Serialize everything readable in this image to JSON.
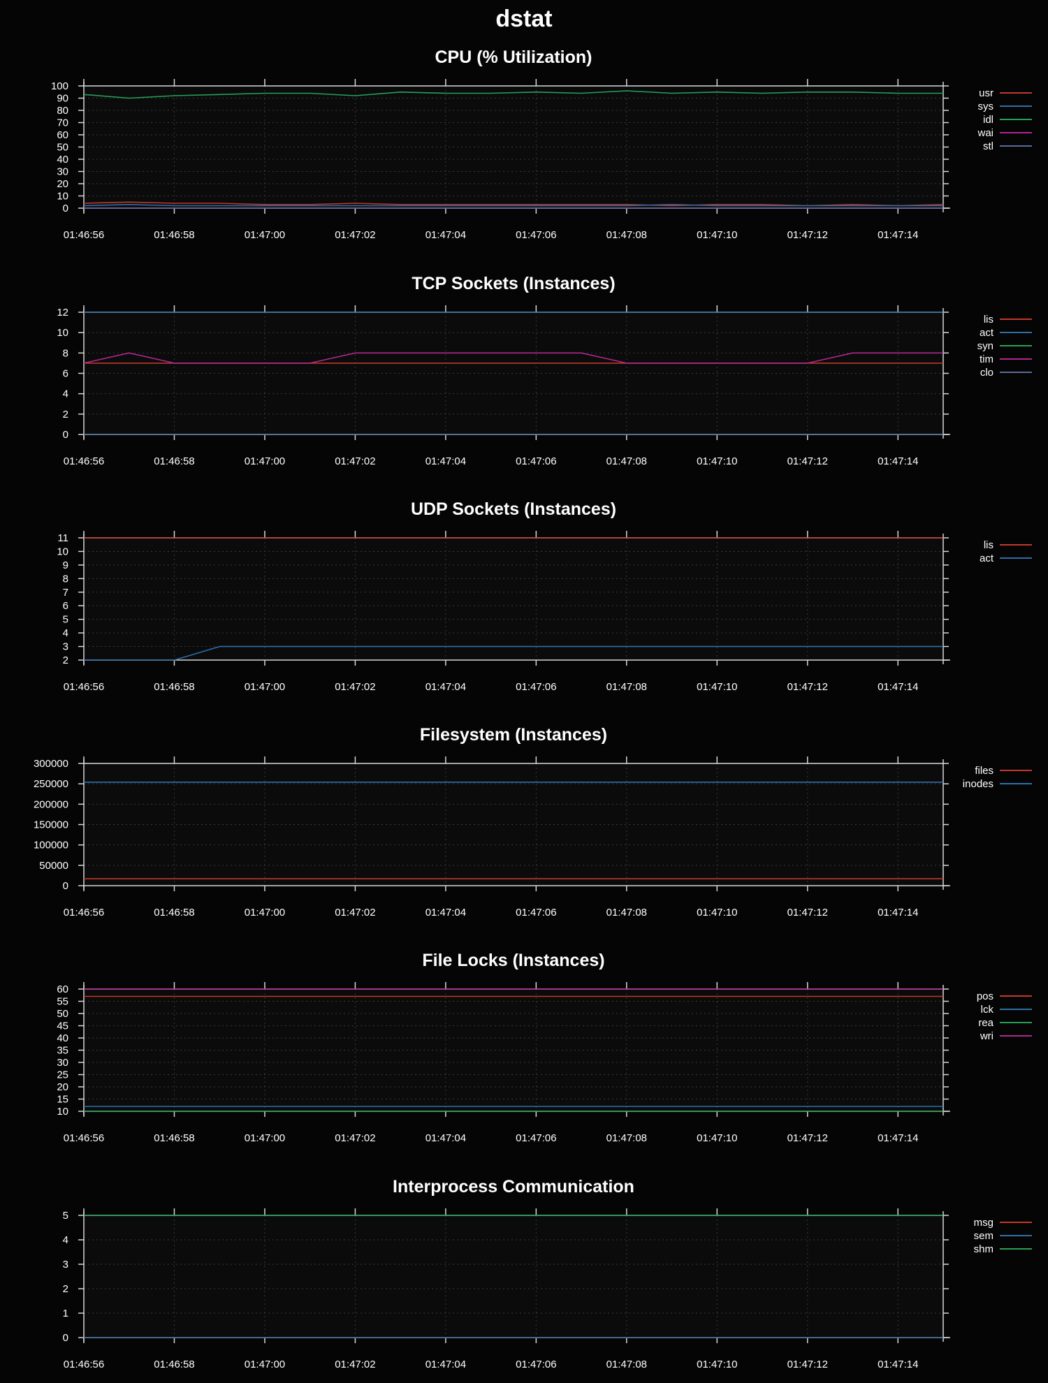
{
  "page": {
    "title": "dstat"
  },
  "colors": {
    "background": "#050505",
    "text": "#ffffff",
    "axis": "#d8d8d8",
    "grid": "#3a3a3a",
    "red": "#c0392b",
    "blue": "#2f6fa8",
    "green": "#27a05a",
    "magenta": "#b0288f",
    "slate": "#5d6a9b"
  },
  "chart_data": [
    {
      "type": "line",
      "title": "CPU (% Utilization)",
      "x": [
        "01:46:56",
        "01:46:57",
        "01:46:58",
        "01:46:59",
        "01:47:00",
        "01:47:01",
        "01:47:02",
        "01:47:03",
        "01:47:04",
        "01:47:05",
        "01:47:06",
        "01:47:07",
        "01:47:08",
        "01:47:09",
        "01:47:10",
        "01:47:11",
        "01:47:12",
        "01:47:13",
        "01:47:14",
        "01:47:15"
      ],
      "xticks": [
        "01:46:56",
        "01:46:58",
        "01:47:00",
        "01:47:02",
        "01:47:04",
        "01:47:06",
        "01:47:08",
        "01:47:10",
        "01:47:12",
        "01:47:14"
      ],
      "ylim": [
        0,
        100
      ],
      "yticks": [
        0,
        10,
        20,
        30,
        40,
        50,
        60,
        70,
        80,
        90,
        100
      ],
      "grid": true,
      "legend": "top-right",
      "series": [
        {
          "name": "usr",
          "color": "red",
          "values": [
            4,
            5,
            4,
            4,
            3,
            3,
            4,
            3,
            3,
            3,
            3,
            3,
            3,
            2,
            3,
            3,
            2,
            3,
            2,
            3
          ]
        },
        {
          "name": "sys",
          "color": "blue",
          "values": [
            2,
            3,
            2,
            2,
            2,
            2,
            2,
            2,
            2,
            2,
            2,
            2,
            2,
            3,
            2,
            2,
            2,
            2,
            2,
            2
          ]
        },
        {
          "name": "idl",
          "color": "green",
          "values": [
            93,
            90,
            92,
            93,
            94,
            94,
            92,
            95,
            94,
            94,
            95,
            94,
            96,
            94,
            95,
            94,
            95,
            95,
            94,
            94
          ]
        },
        {
          "name": "wai",
          "color": "magenta",
          "values": [
            0,
            0,
            0,
            0,
            0,
            0,
            0,
            0,
            0,
            0,
            0,
            0,
            0,
            0,
            0,
            0,
            0,
            0,
            0,
            0
          ]
        },
        {
          "name": "stl",
          "color": "slate",
          "values": [
            0,
            0,
            0,
            0,
            0,
            0,
            0,
            0,
            0,
            0,
            0,
            0,
            0,
            0,
            0,
            0,
            0,
            0,
            0,
            0
          ]
        }
      ]
    },
    {
      "type": "line",
      "title": "TCP Sockets (Instances)",
      "x": [
        "01:46:56",
        "01:46:57",
        "01:46:58",
        "01:46:59",
        "01:47:00",
        "01:47:01",
        "01:47:02",
        "01:47:03",
        "01:47:04",
        "01:47:05",
        "01:47:06",
        "01:47:07",
        "01:47:08",
        "01:47:09",
        "01:47:10",
        "01:47:11",
        "01:47:12",
        "01:47:13",
        "01:47:14",
        "01:47:15"
      ],
      "xticks": [
        "01:46:56",
        "01:46:58",
        "01:47:00",
        "01:47:02",
        "01:47:04",
        "01:47:06",
        "01:47:08",
        "01:47:10",
        "01:47:12",
        "01:47:14"
      ],
      "ylim": [
        0,
        12
      ],
      "yticks": [
        0,
        2,
        4,
        6,
        8,
        10,
        12
      ],
      "grid": true,
      "legend": "top-right",
      "series": [
        {
          "name": "lis",
          "color": "red",
          "values": [
            7,
            7,
            7,
            7,
            7,
            7,
            7,
            7,
            7,
            7,
            7,
            7,
            7,
            7,
            7,
            7,
            7,
            7,
            7,
            7
          ]
        },
        {
          "name": "act",
          "color": "blue",
          "values": [
            12,
            12,
            12,
            12,
            12,
            12,
            12,
            12,
            12,
            12,
            12,
            12,
            12,
            12,
            12,
            12,
            12,
            12,
            12,
            12
          ]
        },
        {
          "name": "syn",
          "color": "green",
          "values": [
            0,
            0,
            0,
            0,
            0,
            0,
            0,
            0,
            0,
            0,
            0,
            0,
            0,
            0,
            0,
            0,
            0,
            0,
            0,
            0
          ]
        },
        {
          "name": "tim",
          "color": "magenta",
          "values": [
            7,
            8,
            7,
            7,
            7,
            7,
            8,
            8,
            8,
            8,
            8,
            8,
            7,
            7,
            7,
            7,
            7,
            8,
            8,
            8
          ]
        },
        {
          "name": "clo",
          "color": "slate",
          "values": [
            0,
            0,
            0,
            0,
            0,
            0,
            0,
            0,
            0,
            0,
            0,
            0,
            0,
            0,
            0,
            0,
            0,
            0,
            0,
            0
          ]
        }
      ]
    },
    {
      "type": "line",
      "title": "UDP Sockets (Instances)",
      "x": [
        "01:46:56",
        "01:46:57",
        "01:46:58",
        "01:46:59",
        "01:47:00",
        "01:47:01",
        "01:47:02",
        "01:47:03",
        "01:47:04",
        "01:47:05",
        "01:47:06",
        "01:47:07",
        "01:47:08",
        "01:47:09",
        "01:47:10",
        "01:47:11",
        "01:47:12",
        "01:47:13",
        "01:47:14",
        "01:47:15"
      ],
      "xticks": [
        "01:46:56",
        "01:46:58",
        "01:47:00",
        "01:47:02",
        "01:47:04",
        "01:47:06",
        "01:47:08",
        "01:47:10",
        "01:47:12",
        "01:47:14"
      ],
      "ylim": [
        2,
        11
      ],
      "yticks": [
        2,
        3,
        4,
        5,
        6,
        7,
        8,
        9,
        10,
        11
      ],
      "grid": true,
      "legend": "top-right",
      "series": [
        {
          "name": "lis",
          "color": "red",
          "values": [
            11,
            11,
            11,
            11,
            11,
            11,
            11,
            11,
            11,
            11,
            11,
            11,
            11,
            11,
            11,
            11,
            11,
            11,
            11,
            11
          ]
        },
        {
          "name": "act",
          "color": "blue",
          "values": [
            2,
            2,
            2,
            3,
            3,
            3,
            3,
            3,
            3,
            3,
            3,
            3,
            3,
            3,
            3,
            3,
            3,
            3,
            3,
            3
          ]
        }
      ]
    },
    {
      "type": "line",
      "title": "Filesystem (Instances)",
      "x": [
        "01:46:56",
        "01:46:57",
        "01:46:58",
        "01:46:59",
        "01:47:00",
        "01:47:01",
        "01:47:02",
        "01:47:03",
        "01:47:04",
        "01:47:05",
        "01:47:06",
        "01:47:07",
        "01:47:08",
        "01:47:09",
        "01:47:10",
        "01:47:11",
        "01:47:12",
        "01:47:13",
        "01:47:14",
        "01:47:15"
      ],
      "xticks": [
        "01:46:56",
        "01:46:58",
        "01:47:00",
        "01:47:02",
        "01:47:04",
        "01:47:06",
        "01:47:08",
        "01:47:10",
        "01:47:12",
        "01:47:14"
      ],
      "ylim": [
        0,
        300000
      ],
      "yticks": [
        0,
        50000,
        100000,
        150000,
        200000,
        250000,
        300000
      ],
      "grid": true,
      "legend": "top-right",
      "series": [
        {
          "name": "files",
          "color": "red",
          "values": [
            17000,
            17000,
            17000,
            17000,
            17000,
            17000,
            17000,
            17000,
            17000,
            17000,
            17000,
            17000,
            17000,
            17000,
            17000,
            17000,
            17000,
            17000,
            17000,
            17000
          ]
        },
        {
          "name": "inodes",
          "color": "blue",
          "values": [
            254000,
            254000,
            254000,
            254000,
            254000,
            254000,
            254000,
            254000,
            254000,
            254000,
            254000,
            254000,
            254000,
            254000,
            254000,
            254000,
            254000,
            254000,
            254000,
            254000
          ]
        }
      ]
    },
    {
      "type": "line",
      "title": "File Locks (Instances)",
      "x": [
        "01:46:56",
        "01:46:57",
        "01:46:58",
        "01:46:59",
        "01:47:00",
        "01:47:01",
        "01:47:02",
        "01:47:03",
        "01:47:04",
        "01:47:05",
        "01:47:06",
        "01:47:07",
        "01:47:08",
        "01:47:09",
        "01:47:10",
        "01:47:11",
        "01:47:12",
        "01:47:13",
        "01:47:14",
        "01:47:15"
      ],
      "xticks": [
        "01:46:56",
        "01:46:58",
        "01:47:00",
        "01:47:02",
        "01:47:04",
        "01:47:06",
        "01:47:08",
        "01:47:10",
        "01:47:12",
        "01:47:14"
      ],
      "ylim": [
        10,
        60
      ],
      "yticks": [
        10,
        15,
        20,
        25,
        30,
        35,
        40,
        45,
        50,
        55,
        60
      ],
      "grid": true,
      "legend": "top-right",
      "series": [
        {
          "name": "pos",
          "color": "red",
          "values": [
            57,
            57,
            57,
            57,
            57,
            57,
            57,
            57,
            57,
            57,
            57,
            57,
            57,
            57,
            57,
            57,
            57,
            57,
            57,
            57
          ]
        },
        {
          "name": "lck",
          "color": "blue",
          "values": [
            12,
            12,
            12,
            12,
            12,
            12,
            12,
            12,
            12,
            12,
            12,
            12,
            12,
            12,
            12,
            12,
            12,
            12,
            12,
            12
          ]
        },
        {
          "name": "rea",
          "color": "green",
          "values": [
            10,
            10,
            10,
            10,
            10,
            10,
            10,
            10,
            10,
            10,
            10,
            10,
            10,
            10,
            10,
            10,
            10,
            10,
            10,
            10
          ]
        },
        {
          "name": "wri",
          "color": "magenta",
          "values": [
            60,
            60,
            60,
            60,
            60,
            60,
            60,
            60,
            60,
            60,
            60,
            60,
            60,
            60,
            60,
            60,
            60,
            60,
            60,
            60
          ]
        }
      ]
    },
    {
      "type": "line",
      "title": "Interprocess Communication",
      "x": [
        "01:46:56",
        "01:46:57",
        "01:46:58",
        "01:46:59",
        "01:47:00",
        "01:47:01",
        "01:47:02",
        "01:47:03",
        "01:47:04",
        "01:47:05",
        "01:47:06",
        "01:47:07",
        "01:47:08",
        "01:47:09",
        "01:47:10",
        "01:47:11",
        "01:47:12",
        "01:47:13",
        "01:47:14",
        "01:47:15"
      ],
      "xticks": [
        "01:46:56",
        "01:46:58",
        "01:47:00",
        "01:47:02",
        "01:47:04",
        "01:47:06",
        "01:47:08",
        "01:47:10",
        "01:47:12",
        "01:47:14"
      ],
      "ylim": [
        0,
        5
      ],
      "yticks": [
        0,
        1,
        2,
        3,
        4,
        5
      ],
      "grid": true,
      "legend": "top-right",
      "series": [
        {
          "name": "msg",
          "color": "red",
          "values": [
            0,
            0,
            0,
            0,
            0,
            0,
            0,
            0,
            0,
            0,
            0,
            0,
            0,
            0,
            0,
            0,
            0,
            0,
            0,
            0
          ]
        },
        {
          "name": "sem",
          "color": "blue",
          "values": [
            0,
            0,
            0,
            0,
            0,
            0,
            0,
            0,
            0,
            0,
            0,
            0,
            0,
            0,
            0,
            0,
            0,
            0,
            0,
            0
          ]
        },
        {
          "name": "shm",
          "color": "green",
          "values": [
            5,
            5,
            5,
            5,
            5,
            5,
            5,
            5,
            5,
            5,
            5,
            5,
            5,
            5,
            5,
            5,
            5,
            5,
            5,
            5
          ]
        }
      ]
    }
  ]
}
